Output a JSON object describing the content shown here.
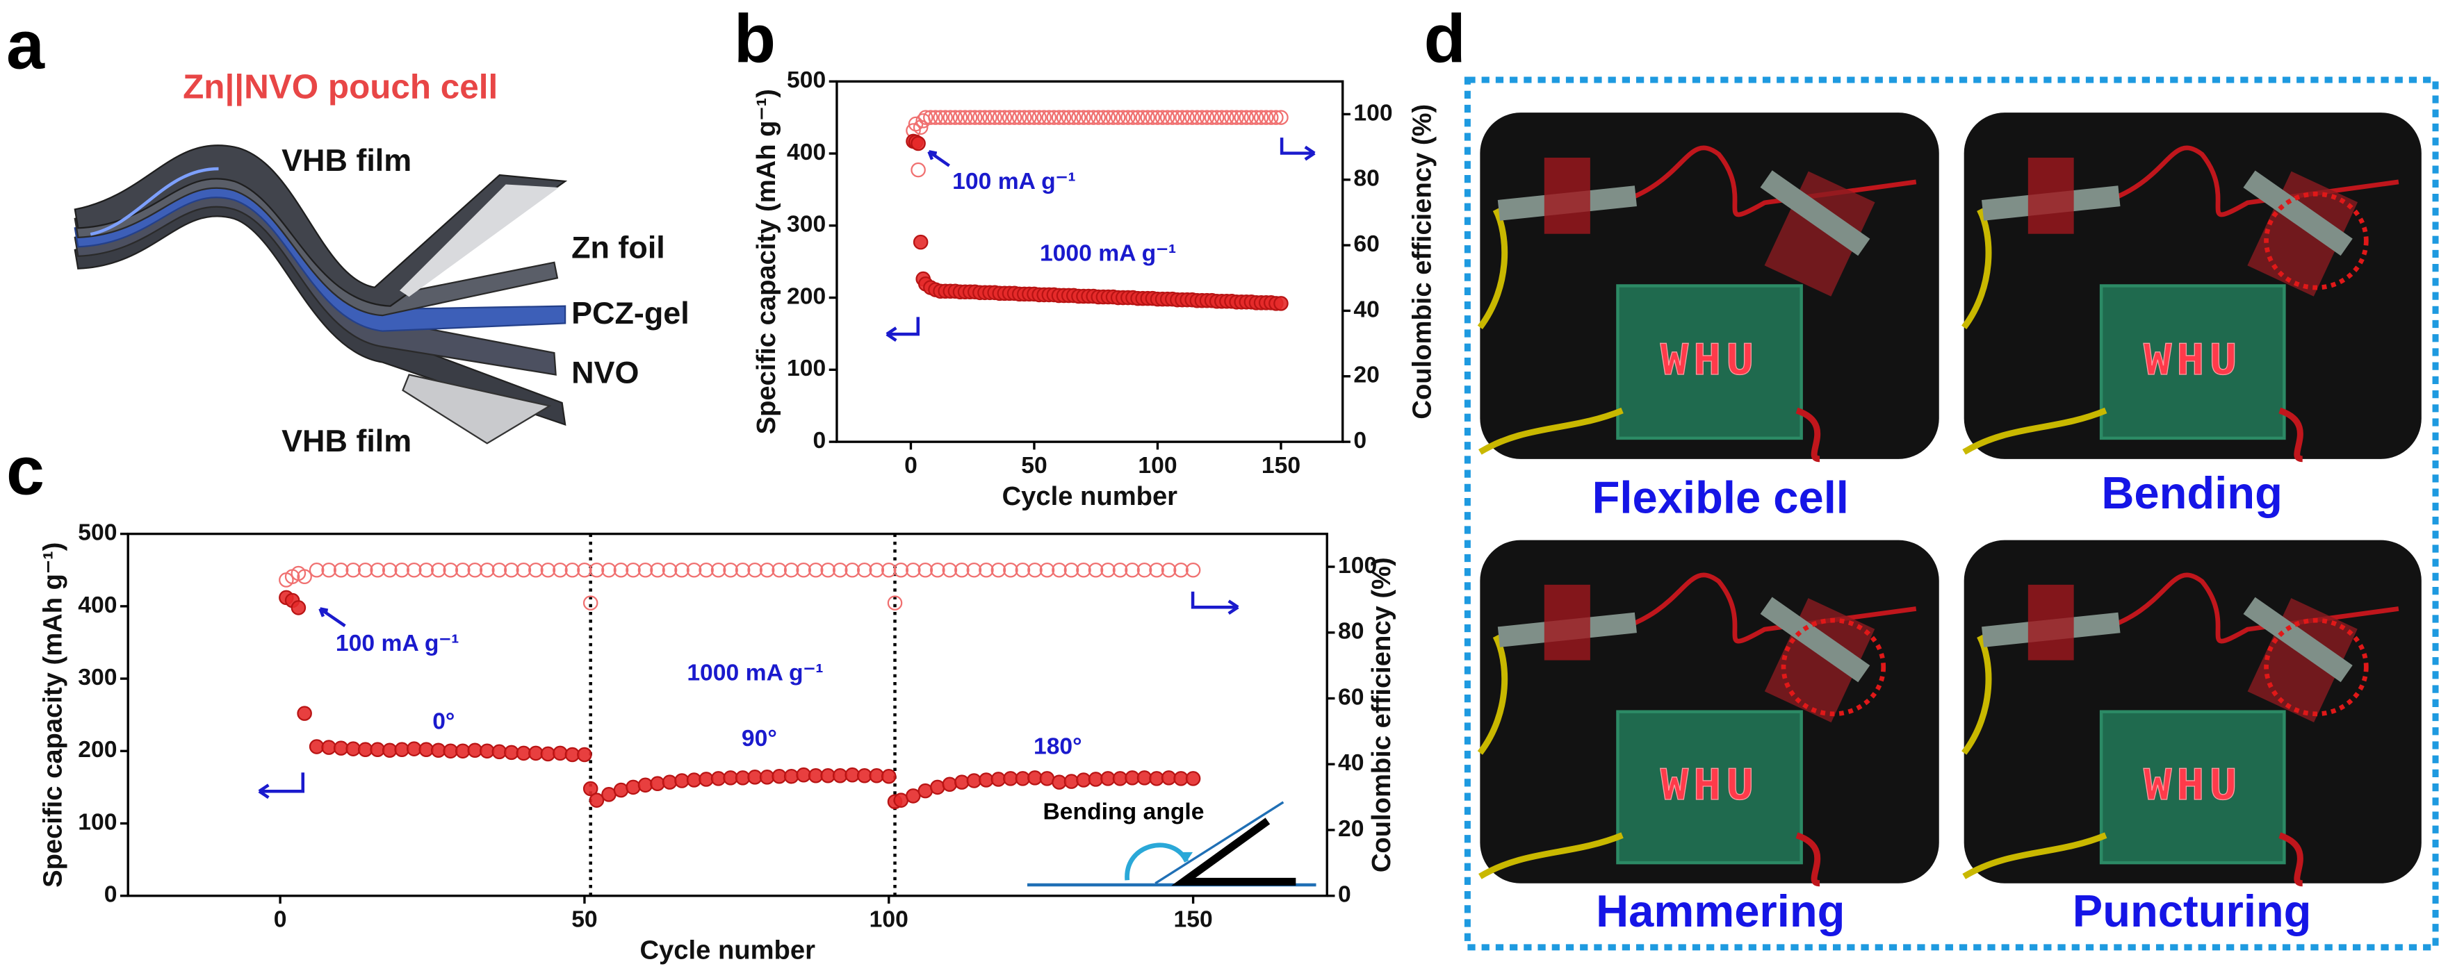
{
  "panels": [
    "a",
    "b",
    "c",
    "d"
  ],
  "panel_a": {
    "title": "Zn||NVO pouch cell",
    "layers": [
      "VHB film",
      "Zn foil",
      "PCZ-gel",
      "NVO",
      "VHB film"
    ]
  },
  "chart_data": [
    {
      "type": "scatter",
      "xlabel": "Cycle number",
      "ylabel": "Specific capacity (mAh g⁻¹)",
      "y2label": "Coulombic efficiency (%)",
      "xlim": [
        -30,
        175
      ],
      "xticks": [
        0,
        50,
        100,
        150
      ],
      "ylim": [
        0,
        500
      ],
      "yticks": [
        0,
        100,
        200,
        300,
        400,
        500
      ],
      "y2lim": [
        0,
        110
      ],
      "y2ticks": [
        0,
        20,
        40,
        60,
        80,
        100
      ],
      "annotations": [
        "100 mA g⁻¹",
        "1000 mA g⁻¹"
      ],
      "series": [
        {
          "color": "#e52a2a",
          "filled": true,
          "x": [
            1,
            2,
            3,
            4,
            5,
            6,
            8,
            10,
            12,
            14,
            16,
            18,
            20,
            22,
            24,
            26,
            28,
            30,
            32,
            34,
            36,
            38,
            40,
            42,
            44,
            46,
            48,
            50,
            52,
            54,
            56,
            58,
            60,
            62,
            64,
            66,
            68,
            70,
            72,
            74,
            76,
            78,
            80,
            82,
            84,
            86,
            88,
            90,
            92,
            94,
            96,
            98,
            100,
            102,
            104,
            106,
            108,
            110,
            112,
            114,
            116,
            118,
            120,
            122,
            124,
            126,
            128,
            130,
            132,
            134,
            136,
            138,
            140,
            142,
            144,
            146,
            148,
            150
          ],
          "values": [
            417,
            416,
            414,
            277,
            226,
            219,
            214,
            211,
            209,
            209,
            209,
            209,
            208,
            208,
            208,
            208,
            207,
            207,
            207,
            207,
            206,
            206,
            206,
            206,
            205,
            205,
            205,
            205,
            204,
            204,
            204,
            204,
            203,
            203,
            203,
            203,
            202,
            202,
            202,
            202,
            201,
            201,
            201,
            201,
            200,
            200,
            200,
            200,
            199,
            199,
            199,
            199,
            198,
            198,
            198,
            198,
            197,
            197,
            197,
            197,
            196,
            196,
            196,
            196,
            195,
            195,
            195,
            195,
            194,
            194,
            194,
            194,
            193,
            193,
            193,
            193,
            192,
            192
          ]
        },
        {
          "color": "#f07070",
          "filled": false,
          "axis": "y2",
          "x": [
            1,
            2,
            3,
            4,
            5,
            6,
            8,
            10,
            12,
            14,
            16,
            18,
            20,
            22,
            24,
            26,
            28,
            30,
            32,
            34,
            36,
            38,
            40,
            42,
            44,
            46,
            48,
            50,
            52,
            54,
            56,
            58,
            60,
            62,
            64,
            66,
            68,
            70,
            72,
            74,
            76,
            78,
            80,
            82,
            84,
            86,
            88,
            90,
            92,
            94,
            96,
            98,
            100,
            102,
            104,
            106,
            108,
            110,
            112,
            114,
            116,
            118,
            120,
            122,
            124,
            126,
            128,
            130,
            132,
            134,
            136,
            138,
            140,
            142,
            144,
            146,
            148,
            150
          ],
          "values": [
            95,
            97,
            83,
            96,
            98,
            99,
            99,
            99,
            99,
            99,
            99,
            99,
            99,
            99,
            99,
            99,
            99,
            99,
            99,
            99,
            99,
            99,
            99,
            99,
            99,
            99,
            99,
            99,
            99,
            99,
            99,
            99,
            99,
            99,
            99,
            99,
            99,
            99,
            99,
            99,
            99,
            99,
            99,
            99,
            99,
            99,
            99,
            99,
            99,
            99,
            99,
            99,
            99,
            99,
            99,
            99,
            99,
            99,
            99,
            99,
            99,
            99,
            99,
            99,
            99,
            99,
            99,
            99,
            99,
            99,
            99,
            99,
            99,
            99,
            99,
            99,
            99,
            99
          ]
        }
      ]
    },
    {
      "type": "scatter",
      "xlabel": "Cycle number",
      "ylabel": "Specific capacity (mAh g⁻¹)",
      "y2label": "Coulombic efficiency (%)",
      "xlim": [
        -25,
        172
      ],
      "xticks": [
        0,
        50,
        100,
        150
      ],
      "ylim": [
        0,
        500
      ],
      "yticks": [
        0,
        100,
        200,
        300,
        400,
        500
      ],
      "y2lim": [
        0,
        110
      ],
      "y2ticks": [
        0,
        20,
        40,
        60,
        80,
        100
      ],
      "vlines": [
        51,
        101
      ],
      "annotations": [
        "100 mA g⁻¹",
        "1000 mA g⁻¹",
        "0°",
        "90°",
        "180°",
        "Bending angle"
      ],
      "series": [
        {
          "color": "#e52a2a",
          "filled": true,
          "x": [
            1,
            2,
            3,
            4,
            6,
            8,
            10,
            12,
            14,
            16,
            18,
            20,
            22,
            24,
            26,
            28,
            30,
            32,
            34,
            36,
            38,
            40,
            42,
            44,
            46,
            48,
            50,
            51,
            52,
            54,
            56,
            58,
            60,
            62,
            64,
            66,
            68,
            70,
            72,
            74,
            76,
            78,
            80,
            82,
            84,
            86,
            88,
            90,
            92,
            94,
            96,
            98,
            100,
            101,
            102,
            104,
            106,
            108,
            110,
            112,
            114,
            116,
            118,
            120,
            122,
            124,
            126,
            128,
            130,
            132,
            134,
            136,
            138,
            140,
            142,
            144,
            146,
            148,
            150
          ],
          "values": [
            412,
            408,
            398,
            252,
            206,
            205,
            204,
            203,
            202,
            202,
            201,
            202,
            203,
            202,
            201,
            200,
            200,
            201,
            200,
            199,
            198,
            197,
            197,
            196,
            197,
            195,
            195,
            148,
            132,
            140,
            146,
            150,
            153,
            155,
            157,
            159,
            160,
            161,
            162,
            163,
            163,
            164,
            164,
            165,
            165,
            167,
            166,
            166,
            166,
            167,
            166,
            166,
            165,
            130,
            132,
            138,
            145,
            150,
            154,
            157,
            159,
            160,
            161,
            162,
            162,
            163,
            162,
            157,
            158,
            160,
            161,
            162,
            162,
            163,
            163,
            162,
            163,
            162,
            162
          ]
        },
        {
          "color": "#f07070",
          "filled": false,
          "axis": "y2",
          "x": [
            1,
            2,
            3,
            4,
            6,
            8,
            10,
            12,
            14,
            16,
            18,
            20,
            22,
            24,
            26,
            28,
            30,
            32,
            34,
            36,
            38,
            40,
            42,
            44,
            46,
            48,
            50,
            51,
            52,
            54,
            56,
            58,
            60,
            62,
            64,
            66,
            68,
            70,
            72,
            74,
            76,
            78,
            80,
            82,
            84,
            86,
            88,
            90,
            92,
            94,
            96,
            98,
            100,
            101,
            102,
            104,
            106,
            108,
            110,
            112,
            114,
            116,
            118,
            120,
            122,
            124,
            126,
            128,
            130,
            132,
            134,
            136,
            138,
            140,
            142,
            144,
            146,
            148,
            150
          ],
          "values": [
            96,
            97,
            98,
            97,
            99,
            99,
            99,
            99,
            99,
            99,
            99,
            99,
            99,
            99,
            99,
            99,
            99,
            99,
            99,
            99,
            99,
            99,
            99,
            99,
            99,
            99,
            99,
            89,
            99,
            99,
            99,
            99,
            99,
            99,
            99,
            99,
            99,
            99,
            99,
            99,
            99,
            99,
            99,
            99,
            99,
            99,
            99,
            99,
            99,
            99,
            99,
            99,
            99,
            89,
            99,
            99,
            99,
            99,
            99,
            99,
            99,
            99,
            99,
            99,
            99,
            99,
            99,
            99,
            99,
            99,
            99,
            99,
            99,
            99,
            99,
            99,
            99,
            99,
            99
          ]
        }
      ]
    }
  ],
  "panel_d": {
    "led_text": "WHU",
    "labels": [
      "Flexible cell",
      "Bending",
      "Hammering",
      "Puncturing"
    ]
  }
}
